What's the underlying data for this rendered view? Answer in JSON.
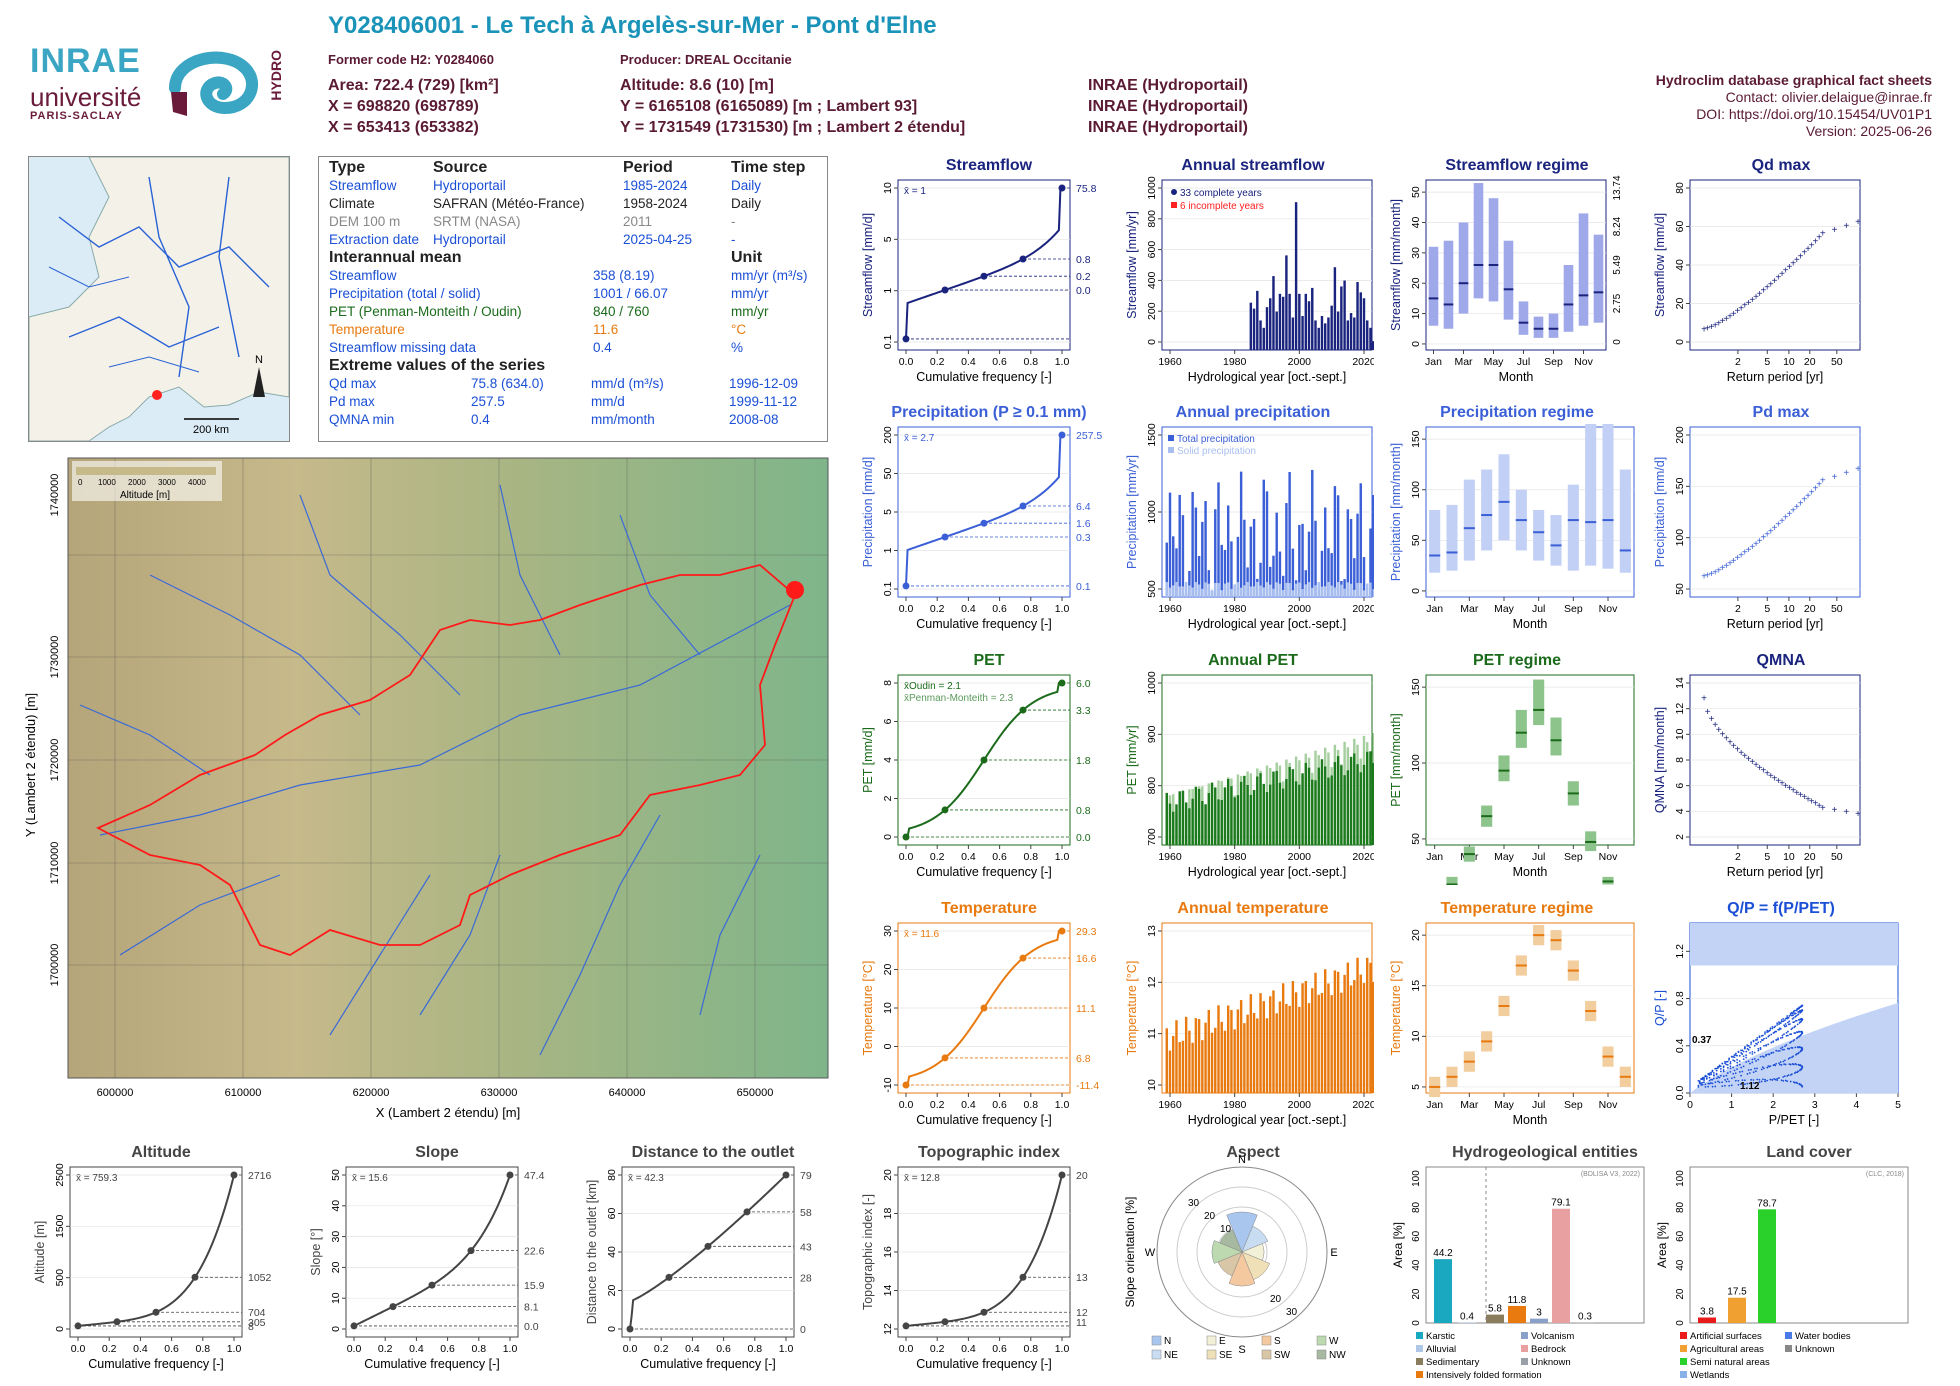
{
  "header": {
    "title": "Y028406001 - Le Tech à Argelès-sur-Mer - Pont d'Elne",
    "former_code": "Former code H2: Y0284060",
    "producer": "Producer: DREAL Occitanie",
    "area": "Area: 722.4 (729) [km²]",
    "x93": "X = 698820 (698789)",
    "x2": "X = 653413 (653382)",
    "altitude": "Altitude: 8.6 (10) [m]",
    "y93": "Y = 6165108 (6165089) [m ; Lambert 93]",
    "y2": "Y = 1731549 (1731530) [m ; Lambert 2 étendu]",
    "src1": "INRAE (Hydroportail)",
    "src2": "INRAE (Hydroportail)",
    "src3": "INRAE (Hydroportail)",
    "db": "Hydroclim database graphical fact sheets",
    "contact": "Contact: olivier.delaigue@inrae.fr",
    "doi": "DOI: https://doi.org/10.15454/UV01P1",
    "version": "Version: 2025-06-26"
  },
  "logos": {
    "inrae": "INRAE",
    "univ": "université",
    "ps": "PARIS-SACLAY",
    "hydro": "HYDRO"
  },
  "overview_map": {
    "scale": "200 km",
    "north": "N"
  },
  "info": {
    "h_type": "Type",
    "h_source": "Source",
    "h_period": "Period",
    "h_step": "Time step",
    "rows": [
      {
        "type": "Streamflow",
        "source": "Hydroportail",
        "period": "1985-2024",
        "step": "Daily"
      },
      {
        "type": "Climate",
        "source": "SAFRAN (Météo-France)",
        "period": "1958-2024",
        "step": "Daily"
      },
      {
        "type": "DEM 100 m",
        "source": "SRTM (NASA)",
        "period": "2011",
        "step": "-"
      },
      {
        "type": "Extraction date",
        "source": "Hydroportail",
        "period": "2025-04-25",
        "step": "-"
      }
    ],
    "h_mean": "Interannual mean",
    "h_unit": "Unit",
    "means": [
      {
        "name": "Streamflow",
        "value": "358 (8.19)",
        "unit": "mm/yr (m³/s)"
      },
      {
        "name": "Precipitation (total / solid)",
        "value": "1001 / 66.07",
        "unit": "mm/yr"
      },
      {
        "name": "PET (Penman-Monteith / Oudin)",
        "value": "840 / 760",
        "unit": "mm/yr"
      },
      {
        "name": "Temperature",
        "value": "11.6",
        "unit": "°C"
      },
      {
        "name": "Streamflow missing data",
        "value": "0.4",
        "unit": "%"
      }
    ],
    "h_extreme": "Extreme values of the series",
    "extremes": [
      {
        "name": "Qd max",
        "value": "75.8 (634.0)",
        "unit": "mm/d (m³/s)",
        "date": "1996-12-09"
      },
      {
        "name": "Pd max",
        "value": "257.5",
        "unit": "mm/d",
        "date": "1999-11-12"
      },
      {
        "name": "QMNA min",
        "value": "0.4",
        "unit": "mm/month",
        "date": "2008-08"
      }
    ]
  },
  "basin_map": {
    "legend_title": "Altitude [m]",
    "legend_ticks": [
      "0",
      "1000",
      "2000",
      "3000",
      "4000"
    ],
    "xlabel": "X (Lambert 2 étendu) [m]",
    "ylabel": "Y (Lambert 2 étendu) [m]",
    "xticks": [
      "600000",
      "610000",
      "620000",
      "630000",
      "640000",
      "650000"
    ],
    "yticks": [
      "1700000",
      "1710000",
      "1720000",
      "1730000",
      "1740000"
    ]
  },
  "chart_data": [
    {
      "id": "streamflow",
      "type": "line",
      "title": "Streamflow",
      "xlabel": "Cumulative frequency [-]",
      "ylabel": "Streamflow [mm/d]",
      "mean": "x̄ = 1",
      "xticks": [
        "0.0",
        "0.2",
        "0.4",
        "0.6",
        "0.8",
        "1.0"
      ],
      "yticks": [
        "0.1",
        "1",
        "5",
        "10"
      ],
      "right_labels": [
        "75.8",
        "0.8",
        "0.2",
        "0.0"
      ],
      "color": "#1a237e"
    },
    {
      "id": "annual_streamflow",
      "type": "bar",
      "title": "Annual streamflow",
      "xlabel": "Hydrological year [oct.-sept.]",
      "ylabel": "Streamflow [mm/yr]",
      "legend": [
        "33 complete years",
        "6 incomplete years"
      ],
      "xticks": [
        "1960",
        "1980",
        "2000",
        "2020"
      ],
      "yticks": [
        "0",
        "200",
        "400",
        "600",
        "800",
        "1000"
      ],
      "ylim": [
        0,
        1150
      ],
      "color": "#1a237e",
      "x": [
        1985,
        1986,
        1987,
        1988,
        1989,
        1990,
        1991,
        1992,
        1993,
        1994,
        1995,
        1996,
        1997,
        1998,
        1999,
        2000,
        2001,
        2002,
        2003,
        2004,
        2005,
        2006,
        2007,
        2008,
        2009,
        2010,
        2011,
        2012,
        2013,
        2014,
        2015,
        2016,
        2017,
        2018,
        2019,
        2020,
        2021,
        2022,
        2023
      ],
      "values": [
        320,
        280,
        400,
        200,
        150,
        290,
        350,
        500,
        260,
        380,
        360,
        640,
        380,
        220,
        1000,
        380,
        230,
        380,
        330,
        420,
        200,
        150,
        230,
        180,
        220,
        300,
        560,
        260,
        430,
        470,
        200,
        250,
        220,
        460,
        390,
        350,
        200,
        150,
        60
      ]
    },
    {
      "id": "streamflow_regime",
      "type": "bar",
      "title": "Streamflow regime",
      "xlabel": "Month",
      "ylabel": "Streamflow [mm/month]",
      "yticks": [
        "0",
        "10",
        "20",
        "30",
        "40",
        "50"
      ],
      "right_ticks": [
        "0",
        "2.75",
        "5.49",
        "8.24",
        "13.74"
      ],
      "xticks": [
        "Jan",
        "Mar",
        "May",
        "Jul",
        "Sep",
        "Nov"
      ],
      "color": "#1a237e",
      "median": [
        15,
        13,
        20,
        26,
        26,
        18,
        7,
        5,
        5,
        13,
        16,
        17
      ],
      "low": [
        6,
        5,
        10,
        15,
        14,
        8,
        3,
        2,
        2,
        4,
        6,
        7
      ],
      "high": [
        32,
        34,
        40,
        53,
        48,
        34,
        14,
        9,
        10,
        26,
        43,
        36
      ]
    },
    {
      "id": "qd_max",
      "type": "scatter",
      "title": "Qd max",
      "xlabel": "Return period [yr]",
      "ylabel": "Streamflow [mm/d]",
      "xticks": [
        "2",
        "5",
        "10",
        "20",
        "50"
      ],
      "yticks": [
        "0",
        "20",
        "40",
        "60",
        "80"
      ],
      "color": "#1a237e"
    },
    {
      "id": "precipitation",
      "type": "line",
      "title": "Precipitation (P ≥ 0.1 mm)",
      "xlabel": "Cumulative frequency [-]",
      "ylabel": "Precipitation [mm/d]",
      "mean": "x̄ = 2.7",
      "xticks": [
        "0.0",
        "0.2",
        "0.4",
        "0.6",
        "0.8",
        "1.0"
      ],
      "yticks": [
        "0.1",
        "1",
        "5",
        "50",
        "200"
      ],
      "right_labels": [
        "257.5",
        "6.4",
        "1.6",
        "0.3",
        "0.1"
      ],
      "color": "#3a5fd6"
    },
    {
      "id": "annual_precipitation",
      "type": "bar",
      "title": "Annual precipitation",
      "xlabel": "Hydrological year [oct.-sept.]",
      "ylabel": "Precipitation [mm/yr]",
      "legend": [
        "Total precipitation",
        "Solid precipitation"
      ],
      "xticks": [
        "1960",
        "1980",
        "2000",
        "2020"
      ],
      "yticks": [
        "500",
        "1000",
        "1500"
      ],
      "ylim": [
        400,
        1750
      ],
      "color": "#3a5fd6"
    },
    {
      "id": "precipitation_regime",
      "type": "bar",
      "title": "Precipitation regime",
      "xlabel": "Month",
      "ylabel": "Precipitation [mm/month]",
      "yticks": [
        "0",
        "50",
        "100",
        "150"
      ],
      "xticks": [
        "Jan",
        "Mar",
        "May",
        "Jul",
        "Sep",
        "Nov"
      ],
      "color": "#3a5fd6",
      "median": [
        35,
        38,
        62,
        75,
        88,
        70,
        58,
        45,
        70,
        68,
        70,
        40
      ],
      "low": [
        18,
        20,
        30,
        40,
        50,
        40,
        30,
        25,
        20,
        25,
        22,
        18
      ],
      "high": [
        80,
        85,
        110,
        120,
        135,
        100,
        80,
        75,
        105,
        165,
        165,
        120
      ]
    },
    {
      "id": "pd_max",
      "type": "scatter",
      "title": "Pd max",
      "xlabel": "Return period [yr]",
      "ylabel": "Precipitation [mm/d]",
      "xticks": [
        "2",
        "5",
        "10",
        "20",
        "50"
      ],
      "yticks": [
        "50",
        "100",
        "150",
        "200"
      ],
      "color": "#3a5fd6"
    },
    {
      "id": "pet",
      "type": "line",
      "title": "PET",
      "xlabel": "Cumulative frequency [-]",
      "ylabel": "PET [mm/d]",
      "mean": "x̄Oudin = 2.1",
      "mean2": "x̄Penman-Monteith = 2.3",
      "xticks": [
        "0.0",
        "0.2",
        "0.4",
        "0.6",
        "0.8",
        "1.0"
      ],
      "yticks": [
        "0",
        "2",
        "4",
        "6",
        "8"
      ],
      "right_labels": [
        "6.0",
        "3.3",
        "1.8",
        "0.8",
        "0.0"
      ],
      "color": "#1b6b1b"
    },
    {
      "id": "annual_pet",
      "type": "bar",
      "title": "Annual PET",
      "xlabel": "Hydrological year [oct.-sept.]",
      "ylabel": "PET [mm/yr]",
      "xticks": [
        "1960",
        "1980",
        "2000",
        "2020"
      ],
      "yticks": [
        "700",
        "800",
        "900",
        "1000"
      ],
      "ylim": [
        660,
        1060
      ],
      "color": "#1b6b1b"
    },
    {
      "id": "pet_regime",
      "type": "bar",
      "title": "PET regime",
      "xlabel": "Month",
      "ylabel": "PET [mm/month]",
      "yticks": [
        "50",
        "100",
        "150"
      ],
      "xticks": [
        "Jan",
        "Mar",
        "May",
        "Jul",
        "Sep",
        "Nov"
      ],
      "color": "#1b6b1b",
      "median": [
        15,
        20,
        40,
        65,
        95,
        120,
        135,
        115,
        80,
        48,
        22,
        15
      ],
      "low": [
        13,
        18,
        35,
        58,
        88,
        110,
        125,
        105,
        72,
        42,
        20,
        13
      ],
      "high": [
        18,
        25,
        45,
        72,
        105,
        135,
        155,
        130,
        88,
        55,
        25,
        18
      ]
    },
    {
      "id": "qmna",
      "type": "scatter",
      "title": "QMNA",
      "xlabel": "Return period [yr]",
      "ylabel": "QMNA [mm/month]",
      "xticks": [
        "2",
        "5",
        "10",
        "20",
        "50"
      ],
      "yticks": [
        "2",
        "4",
        "6",
        "8",
        "10",
        "12",
        "14"
      ],
      "color": "#1a237e"
    },
    {
      "id": "temperature",
      "type": "line",
      "title": "Temperature",
      "xlabel": "Cumulative frequency [-]",
      "ylabel": "Temperature [°C]",
      "mean": "x̄ = 11.6",
      "xticks": [
        "0.0",
        "0.2",
        "0.4",
        "0.6",
        "0.8",
        "1.0"
      ],
      "yticks": [
        "-10",
        "0",
        "10",
        "20",
        "30"
      ],
      "right_labels": [
        "29.3",
        "16.6",
        "11.1",
        "6.8",
        "-11.4"
      ],
      "color": "#e87a10"
    },
    {
      "id": "annual_temperature",
      "type": "bar",
      "title": "Annual temperature",
      "xlabel": "Hydrological year [oct.-sept.]",
      "ylabel": "Temperature [°C]",
      "xticks": [
        "1960",
        "1980",
        "2000",
        "2020"
      ],
      "yticks": [
        "10",
        "11",
        "12",
        "13"
      ],
      "ylim": [
        9.6,
        13.6
      ],
      "color": "#e87a10"
    },
    {
      "id": "temperature_regime",
      "type": "bar",
      "title": "Temperature regime",
      "xlabel": "Month",
      "ylabel": "Temperature [°C]",
      "yticks": [
        "5",
        "10",
        "15",
        "20"
      ],
      "xticks": [
        "Jan",
        "Mar",
        "May",
        "Jul",
        "Sep",
        "Nov"
      ],
      "color": "#e87a10",
      "median": [
        5,
        6,
        7.5,
        9.5,
        13,
        17,
        20,
        19.5,
        16.5,
        12.5,
        8,
        6
      ],
      "low": [
        4,
        5,
        6.5,
        8.5,
        12,
        16,
        19,
        18.5,
        15.5,
        11.5,
        7,
        5
      ],
      "high": [
        6,
        7,
        8.5,
        10.5,
        14,
        18,
        21,
        20.5,
        17.5,
        13.5,
        9,
        7
      ]
    },
    {
      "id": "qp_ppet",
      "type": "scatter",
      "title": "Q/P = f(P/PET)",
      "xlabel": "P/PET [-]",
      "ylabel": "Q/P [-]",
      "xticks": [
        "0",
        "1",
        "2",
        "3",
        "4",
        "5"
      ],
      "yticks": [
        "0.0",
        "0.4",
        "0.8",
        "1.2"
      ],
      "annotations": [
        "0.37",
        "1.12"
      ],
      "color": "#1a4fd6"
    },
    {
      "id": "altitude",
      "type": "line",
      "title": "Altitude",
      "xlabel": "Cumulative frequency [-]",
      "ylabel": "Altitude [m]",
      "mean": "x̄ = 759.3",
      "xticks": [
        "0.0",
        "0.2",
        "0.4",
        "0.6",
        "0.8",
        "1.0"
      ],
      "yticks": [
        "0",
        "500",
        "1500",
        "2500"
      ],
      "right_labels": [
        "2716",
        "1052",
        "704",
        "305",
        "8"
      ],
      "color": "#444"
    },
    {
      "id": "slope",
      "type": "line",
      "title": "Slope",
      "xlabel": "Cumulative frequency [-]",
      "ylabel": "Slope [°]",
      "mean": "x̄ = 15.6",
      "xticks": [
        "0.0",
        "0.2",
        "0.4",
        "0.6",
        "0.8",
        "1.0"
      ],
      "yticks": [
        "0",
        "10",
        "20",
        "30",
        "40",
        "50"
      ],
      "right_labels": [
        "47.4",
        "22.6",
        "15.9",
        "8.1",
        "0.0"
      ],
      "color": "#444"
    },
    {
      "id": "distance_outlet",
      "type": "line",
      "title": "Distance to the outlet",
      "xlabel": "Cumulative frequency [-]",
      "ylabel": "Distance to the outlet [km]",
      "mean": "x̄ = 42.3",
      "xticks": [
        "0.0",
        "0.2",
        "0.4",
        "0.6",
        "0.8",
        "1.0"
      ],
      "yticks": [
        "0",
        "20",
        "40",
        "60",
        "80"
      ],
      "right_labels": [
        "79",
        "58",
        "43",
        "28",
        "0"
      ],
      "color": "#444"
    },
    {
      "id": "topographic_index",
      "type": "line",
      "title": "Topographic index",
      "xlabel": "Cumulative frequency [-]",
      "ylabel": "Topographic index [-]",
      "mean": "x̄ = 12.8",
      "xticks": [
        "0.0",
        "0.2",
        "0.4",
        "0.6",
        "0.8",
        "1.0"
      ],
      "yticks": [
        "12",
        "14",
        "16",
        "18",
        "20"
      ],
      "right_labels": [
        "20",
        "13",
        "12",
        "11"
      ],
      "color": "#444"
    },
    {
      "id": "aspect",
      "type": "pie",
      "title": "Aspect",
      "ylabel": "Slope orientation [%]",
      "ring_ticks": [
        "10",
        "20",
        "30"
      ],
      "ring_ticks2": [
        "20",
        "30"
      ],
      "directions": [
        "N",
        "E",
        "S",
        "W"
      ],
      "legend": [
        "N",
        "E",
        "S",
        "W",
        "NE",
        "SE",
        "SW",
        "NW"
      ],
      "colors": [
        "#a9c7ee",
        "#f2f0d6",
        "#f5c9a0",
        "#bcd9b0",
        "#c9ddf2",
        "#efe0b8",
        "#d9c6a6",
        "#a7b9a0"
      ]
    },
    {
      "id": "hydrogeology",
      "type": "bar",
      "title": "Hydrogeological entities",
      "ylabel": "Area [%]",
      "source": "(BDLISA V3, 2022)",
      "yticks": [
        "0",
        "20",
        "40",
        "60",
        "80",
        "100"
      ],
      "ylim": [
        0,
        100
      ],
      "categories": [
        "Karstic",
        "Alluvial",
        "Sedimentary",
        "Intensively folded formation",
        "Volcanism",
        "Bedrock",
        "Unknown"
      ],
      "values": [
        44.2,
        0.4,
        5.8,
        11.8,
        3,
        79.1,
        0.3
      ],
      "labels": [
        "44.2",
        "0.4",
        "5.8",
        "11.8",
        "3",
        "79.1",
        "0.3"
      ],
      "colors": [
        "#1aa7c0",
        "#aec7e8",
        "#8a7d5e",
        "#e87a10",
        "#8aa0c8",
        "#e8a0a0",
        "#9aa0a8"
      ]
    },
    {
      "id": "land_cover",
      "type": "bar",
      "title": "Land cover",
      "ylabel": "Area [%]",
      "source": "(CLC, 2018)",
      "yticks": [
        "0",
        "20",
        "40",
        "60",
        "80",
        "100"
      ],
      "ylim": [
        0,
        100
      ],
      "categories": [
        "Artificial surfaces",
        "Agricultural areas",
        "Semi natural areas",
        "Wetlands",
        "Water bodies",
        "Unknown"
      ],
      "values": [
        3.8,
        17.5,
        78.7
      ],
      "labels": [
        "3.8",
        "17.5",
        "78.7"
      ],
      "colors": [
        "#e81a1a",
        "#f0a030",
        "#2ad12a",
        "#8ab0e8",
        "#4a7ae8",
        "#888888"
      ]
    }
  ]
}
